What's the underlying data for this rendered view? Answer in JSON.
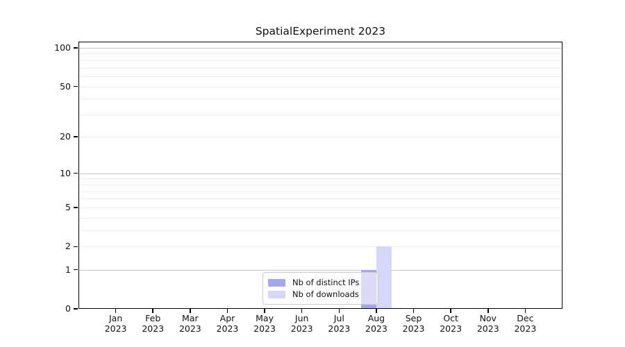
{
  "figure": {
    "background": "#ffffff"
  },
  "chart_data": {
    "type": "bar",
    "title": "SpatialExperiment 2023",
    "categories": [
      {
        "month": "Jan",
        "year": "2023"
      },
      {
        "month": "Feb",
        "year": "2023"
      },
      {
        "month": "Mar",
        "year": "2023"
      },
      {
        "month": "Apr",
        "year": "2023"
      },
      {
        "month": "May",
        "year": "2023"
      },
      {
        "month": "Jun",
        "year": "2023"
      },
      {
        "month": "Jul",
        "year": "2023"
      },
      {
        "month": "Aug",
        "year": "2023"
      },
      {
        "month": "Sep",
        "year": "2023"
      },
      {
        "month": "Oct",
        "year": "2023"
      },
      {
        "month": "Nov",
        "year": "2023"
      },
      {
        "month": "Dec",
        "year": "2023"
      }
    ],
    "series": [
      {
        "name": "Nb of distinct IPs",
        "color": "#a6a6ee",
        "values": [
          0,
          0,
          0,
          0,
          0,
          0,
          0,
          1,
          0,
          0,
          0,
          0
        ]
      },
      {
        "name": "Nb of downloads",
        "color": "#d7d7f7",
        "values": [
          0,
          0,
          0,
          0,
          0,
          0,
          0,
          2,
          0,
          0,
          0,
          0
        ]
      }
    ],
    "y_axis": {
      "scale": "log1p",
      "ticks": [
        0,
        1,
        2,
        5,
        10,
        20,
        50,
        100
      ],
      "major_gridlines": [
        1,
        10,
        100
      ],
      "minor_gridlines": [
        2,
        3,
        4,
        5,
        6,
        7,
        8,
        9,
        20,
        30,
        40,
        50,
        60,
        70,
        80,
        90
      ],
      "range": [
        0,
        100
      ]
    },
    "x_axis": {
      "label_line2_shared": "2023"
    },
    "legend": {
      "position": "inside-lower-center",
      "items": [
        "Nb of distinct IPs",
        "Nb of downloads"
      ]
    },
    "grid": "horizontal",
    "colors": {
      "axis": "#000000",
      "text": "#111111",
      "grid_major": "#c6c6c6",
      "grid_minor": "#ededed",
      "legend_border": "#cccccc"
    }
  }
}
